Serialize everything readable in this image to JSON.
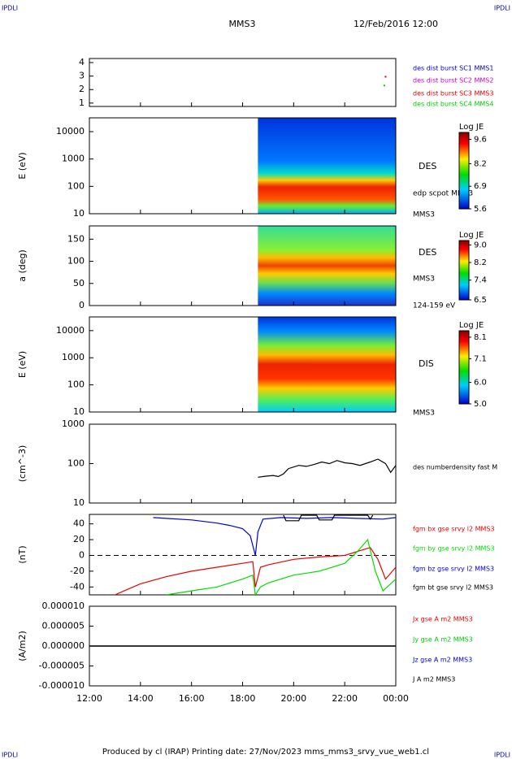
{
  "header": {
    "corner_left": "IPDLI",
    "corner_right": "IPDLI",
    "spacecraft": "MMS3",
    "date": "12/Feb/2016 12:00"
  },
  "footer": {
    "text": "Produced by cl (IRAP)   Printing date: 27/Nov/2023   mms_mms3_srvy_vue_web1.cl",
    "corner_left": "IPDLI",
    "corner_right": "IPDLI"
  },
  "chart_data": [
    {
      "type": "scatter",
      "xlim": [
        12,
        24
      ],
      "ylim": [
        0.75,
        4.3
      ],
      "yticks": [
        1,
        2,
        3,
        4
      ],
      "series": [
        {
          "name": "des dist burst SC1 MMS1",
          "color": "#0000cc",
          "x": [],
          "values": []
        },
        {
          "name": "des dist burst SC2 MMS2",
          "color": "#cc00cc",
          "x": [],
          "values": []
        },
        {
          "name": "des dist burst SC3 MMS3",
          "color": "#dd0000",
          "x": [
            23.6
          ],
          "values": [
            2.95
          ]
        },
        {
          "name": "des dist burst SC4 MMS4",
          "color": "#00cc00",
          "x": [
            23.55
          ],
          "values": [
            2.3
          ]
        }
      ]
    },
    {
      "type": "spectrogram",
      "ylabel": "E (eV)",
      "log": true,
      "xlim": [
        12,
        24
      ],
      "x": [
        18.6,
        24
      ],
      "ylim": [
        10,
        32000
      ],
      "yticks": [
        10,
        100,
        1000,
        10000
      ],
      "labels": [
        "DES",
        "edp scpot MMS3",
        "MMS3"
      ],
      "colorbar": {
        "title": "Log JE",
        "clim": [
          5.6,
          10.0
        ],
        "ticks": [
          9.6,
          8.2,
          6.9,
          5.6
        ]
      }
    },
    {
      "type": "spectrogram",
      "ylabel": "a (deg)",
      "log": false,
      "xlim": [
        12,
        24
      ],
      "x": [
        18.6,
        24
      ],
      "ylim": [
        0,
        180
      ],
      "yticks": [
        0,
        50,
        100,
        150
      ],
      "labels": [
        "DES",
        "MMS3",
        "124-159 eV"
      ],
      "colorbar": {
        "title": "Log JE",
        "clim": [
          6.5,
          9.2
        ],
        "ticks": [
          {
            "value": 9,
            "label": "9.0"
          },
          8.2,
          7.4,
          6.5
        ]
      }
    },
    {
      "type": "spectrogram",
      "ylabel": "E (eV)",
      "log": true,
      "xlim": [
        12,
        24
      ],
      "x": [
        18.6,
        24
      ],
      "ylim": [
        10,
        32000
      ],
      "yticks": [
        10,
        100,
        1000,
        10000
      ],
      "labels": [
        "DIS",
        "MMS3"
      ],
      "colorbar": {
        "title": "Log JE",
        "clim": [
          5.0,
          8.4
        ],
        "ticks": [
          8.1,
          7.1,
          {
            "value": 6,
            "label": "6.0"
          },
          {
            "value": 5,
            "label": "5.0"
          }
        ]
      }
    },
    {
      "type": "line",
      "ylabel": "(cm^-3)",
      "log": true,
      "xlim": [
        12,
        24
      ],
      "ylim": [
        10,
        1000
      ],
      "yticks": [
        10,
        100,
        1000
      ],
      "series": [
        {
          "name": "des numberdensity fast M",
          "color": "#000000",
          "x": [
            18.6,
            18.9,
            19.2,
            19.4,
            19.6,
            19.8,
            20.2,
            20.5,
            20.8,
            21.1,
            21.4,
            21.7,
            22.0,
            22.3,
            22.6,
            23.0,
            23.3,
            23.6,
            23.8,
            24.0
          ],
          "values": [
            45,
            48,
            50,
            47,
            55,
            75,
            90,
            85,
            95,
            110,
            100,
            120,
            105,
            100,
            90,
            110,
            130,
            100,
            60,
            90
          ]
        }
      ]
    },
    {
      "type": "line",
      "ylabel": "(nT)",
      "log": false,
      "zero_line": true,
      "xlim": [
        12,
        24
      ],
      "ylim": [
        -50,
        52
      ],
      "yticks": [
        -40,
        -20,
        0,
        20,
        40
      ],
      "series": [
        {
          "name": "fgm bx gse srvy l2 MMS3",
          "color": "#ee0000",
          "x": [
            13.0,
            13.5,
            14.0,
            15.0,
            16.0,
            17.0,
            18.0,
            18.4,
            18.5,
            18.7,
            19.0,
            20.0,
            21.0,
            22.0,
            22.5,
            23.0,
            23.3,
            23.6,
            24.0
          ],
          "values": [
            -50,
            -43,
            -36,
            -27,
            -20,
            -15,
            -10,
            -8,
            -40,
            -15,
            -12,
            -5,
            -2,
            0,
            5,
            10,
            -5,
            -30,
            -15
          ]
        },
        {
          "name": "fgm by gse srvy l2 MMS3",
          "color": "#00dd00",
          "x": [
            15.0,
            16.0,
            17.0,
            18.0,
            18.4,
            18.5,
            18.7,
            19.0,
            20.0,
            21.0,
            22.0,
            22.5,
            22.9,
            23.2,
            23.5,
            24.0
          ],
          "values": [
            -50,
            -45,
            -40,
            -30,
            -25,
            -50,
            -40,
            -35,
            -25,
            -20,
            -10,
            5,
            20,
            -20,
            -45,
            -30
          ]
        },
        {
          "name": "fgm bz gse srvy l2 MMS3",
          "color": "#0000dd",
          "x": [
            14.5,
            15.0,
            16.0,
            17.0,
            17.5,
            18.0,
            18.3,
            18.5,
            18.6,
            18.8,
            19.5,
            20.5,
            21.5,
            22.5,
            23.5,
            24.0
          ],
          "values": [
            48,
            47,
            45,
            41,
            38,
            34,
            25,
            0,
            30,
            46,
            48,
            47,
            48,
            47,
            46,
            48
          ]
        },
        {
          "name": "fgm bt gse srvy l2 MMS3",
          "color": "#000000",
          "x": [
            19.6,
            19.7,
            20.2,
            20.3,
            20.9,
            21.0,
            21.5,
            21.6,
            22.9,
            23.0,
            23.1
          ],
          "values": [
            51,
            44,
            44,
            51,
            51,
            45,
            45,
            51,
            51,
            46,
            51
          ]
        }
      ]
    },
    {
      "type": "line",
      "ylabel": "(A/m2)",
      "log": false,
      "xlim": [
        12,
        24
      ],
      "ylim": [
        -1e-05,
        1e-05
      ],
      "yticks": [
        {
          "value": -1e-05,
          "label": "-0.000010"
        },
        {
          "value": -5e-06,
          "label": "-0.000005"
        },
        {
          "value": 0,
          "label": "0.000000"
        },
        {
          "value": 5e-06,
          "label": "0.000005"
        },
        {
          "value": 1e-05,
          "label": "0.000010"
        }
      ],
      "xticks": [
        {
          "value": 12,
          "label": "12:00"
        },
        {
          "value": 14,
          "label": "14:00"
        },
        {
          "value": 16,
          "label": "16:00"
        },
        {
          "value": 18,
          "label": "18:00"
        },
        {
          "value": 20,
          "label": "20:00"
        },
        {
          "value": 22,
          "label": "22:00"
        },
        {
          "value": 24,
          "label": "00:00"
        }
      ],
      "series": [
        {
          "name": "Jx gse A m2 MMS3",
          "color": "#ee0000",
          "x": [
            12,
            18,
            18.5,
            24
          ],
          "values": [
            0,
            0,
            0,
            0
          ]
        },
        {
          "name": "Jy gse A m2 MMS3",
          "color": "#00cc00",
          "x": [
            12,
            18,
            18.5,
            24
          ],
          "values": [
            0,
            0,
            0,
            0
          ]
        },
        {
          "name": "Jz gse A m2 MMS3",
          "color": "#0000cc",
          "x": [
            12,
            18,
            18.5,
            24
          ],
          "values": [
            0,
            0,
            0,
            0
          ]
        },
        {
          "name": "J A m2 MMS3",
          "color": "#000000",
          "x": [
            12,
            18,
            18.5,
            24
          ],
          "values": [
            0,
            0,
            0,
            0
          ]
        }
      ]
    }
  ]
}
